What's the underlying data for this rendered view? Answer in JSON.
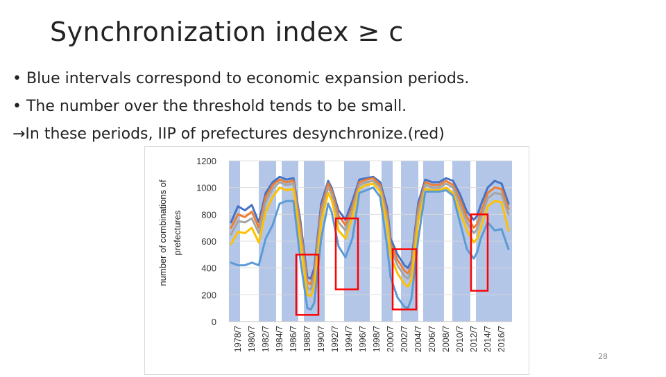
{
  "slide": {
    "title": "Synchronization index ≥ c",
    "bullets": [
      "• Blue intervals correspond to economic expansion periods.",
      "• The number over the threshold tends to be small.",
      "→In these periods, IIP of prefectures desynchronize.(red)"
    ],
    "page_number": "28"
  },
  "colors": {
    "band": "#b4c6e7",
    "highlight": "#ff0000",
    "series": [
      "#4472c4",
      "#ed7d31",
      "#a5a5a5",
      "#ffc000",
      "#5b9bd5"
    ]
  },
  "chart_data": {
    "type": "line",
    "ylabel": "number of combinations of prefectures",
    "ylim": [
      0,
      1200
    ],
    "yticks": [
      0,
      200,
      400,
      600,
      800,
      1000,
      1200
    ],
    "xlim": [
      1977.2,
      2018.0
    ],
    "xticks": [
      "1978/7",
      "1980/7",
      "1982/7",
      "1984/7",
      "1986/7",
      "1988/7",
      "1990/7",
      "1992/7",
      "1994/7",
      "1996/7",
      "1998/7",
      "2000/7",
      "2002/7",
      "2004/7",
      "2006/7",
      "2008/7",
      "2010/7",
      "2012/7",
      "2014/7",
      "2016/7"
    ],
    "expansion_periods": [
      [
        1977.2,
        1978.8
      ],
      [
        1981.5,
        1984.0
      ],
      [
        1984.8,
        1987.2
      ],
      [
        1988.0,
        1991.0
      ],
      [
        1993.8,
        1997.5
      ],
      [
        1999.2,
        2000.8
      ],
      [
        2002.0,
        2004.5
      ],
      [
        2005.2,
        2008.2
      ],
      [
        2009.4,
        2012.0
      ],
      [
        2012.8,
        2018.0
      ]
    ],
    "highlight_boxes": [
      {
        "x": [
          1986.9,
          1990.1
        ],
        "y": [
          50,
          500
        ]
      },
      {
        "x": [
          1992.6,
          1995.8
        ],
        "y": [
          240,
          770
        ]
      },
      {
        "x": [
          2000.8,
          2004.2
        ],
        "y": [
          90,
          540
        ]
      },
      {
        "x": [
          2012.1,
          2014.5
        ],
        "y": [
          230,
          800
        ]
      }
    ],
    "x": [
      1977.5,
      1978.5,
      1979.5,
      1980.5,
      1981.5,
      1982.5,
      1983.5,
      1984.5,
      1985.5,
      1986.5,
      1987.5,
      1988.5,
      1989.0,
      1989.5,
      1990.5,
      1991.5,
      1992.0,
      1993.0,
      1994.0,
      1995.0,
      1996.0,
      1997.0,
      1998.0,
      1999.0,
      2000.0,
      2000.5,
      2001.5,
      2002.5,
      2003.0,
      2003.5,
      2004.5,
      2005.5,
      2006.5,
      2007.5,
      2008.5,
      2009.5,
      2010.5,
      2011.5,
      2012.5,
      2013.0,
      2013.5,
      2014.5,
      2015.5,
      2016.5,
      2017.5
    ],
    "series": [
      {
        "values": [
          740,
          860,
          830,
          870,
          740,
          960,
          1040,
          1080,
          1060,
          1070,
          750,
          330,
          320,
          400,
          880,
          1050,
          1000,
          830,
          760,
          900,
          1060,
          1070,
          1080,
          1040,
          850,
          620,
          500,
          420,
          400,
          450,
          890,
          1060,
          1040,
          1040,
          1070,
          1050,
          950,
          820,
          760,
          790,
          870,
          1000,
          1050,
          1030,
          880
        ]
      },
      {
        "values": [
          700,
          800,
          780,
          820,
          700,
          930,
          1020,
          1060,
          1040,
          1050,
          710,
          290,
          280,
          360,
          840,
          1030,
          980,
          790,
          720,
          860,
          1040,
          1060,
          1070,
          1020,
          810,
          580,
          460,
          380,
          360,
          410,
          850,
          1040,
          1020,
          1020,
          1050,
          1020,
          910,
          780,
          700,
          730,
          810,
          960,
          1000,
          990,
          840
        ]
      },
      {
        "values": [
          650,
          750,
          740,
          770,
          660,
          890,
          990,
          1040,
          1020,
          1030,
          660,
          250,
          240,
          320,
          800,
          1000,
          950,
          740,
          680,
          830,
          1020,
          1040,
          1050,
          1000,
          770,
          540,
          420,
          340,
          320,
          370,
          810,
          1020,
          1000,
          1000,
          1030,
          1000,
          870,
          740,
          660,
          690,
          770,
          920,
          960,
          950,
          800
        ]
      },
      {
        "values": [
          580,
          670,
          660,
          700,
          590,
          820,
          930,
          1000,
          980,
          990,
          600,
          200,
          190,
          260,
          740,
          960,
          910,
          680,
          620,
          780,
          990,
          1020,
          1030,
          970,
          720,
          490,
          360,
          280,
          260,
          310,
          750,
          990,
          980,
          980,
          1000,
          960,
          820,
          680,
          590,
          620,
          700,
          860,
          900,
          890,
          680
        ]
      },
      {
        "values": [
          440,
          420,
          420,
          440,
          420,
          620,
          720,
          880,
          900,
          900,
          460,
          100,
          90,
          140,
          620,
          880,
          820,
          560,
          480,
          620,
          960,
          980,
          1000,
          930,
          560,
          330,
          180,
          110,
          100,
          170,
          620,
          970,
          970,
          970,
          980,
          940,
          740,
          540,
          470,
          520,
          620,
          740,
          680,
          690,
          540
        ]
      }
    ]
  }
}
